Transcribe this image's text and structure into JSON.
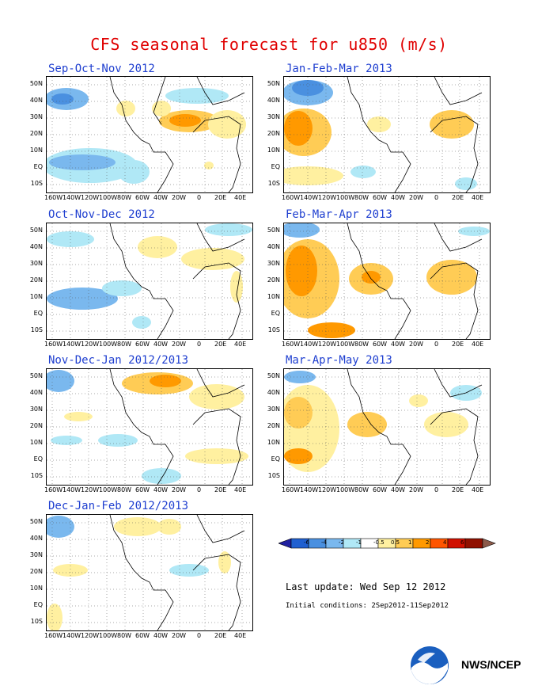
{
  "title": "CFS seasonal forecast for u850 (m/s)",
  "panels": [
    {
      "id": "son",
      "title": "Sep-Oct-Nov 2012"
    },
    {
      "id": "jfm",
      "title": "Jan-Feb-Mar 2013"
    },
    {
      "id": "ond",
      "title": "Oct-Nov-Dec 2012"
    },
    {
      "id": "fma",
      "title": "Feb-Mar-Apr 2013"
    },
    {
      "id": "ndj",
      "title": "Nov-Dec-Jan 2012/2013"
    },
    {
      "id": "mam",
      "title": "Mar-Apr-May 2013"
    },
    {
      "id": "djf",
      "title": "Dec-Jan-Feb 2012/2013"
    }
  ],
  "axes": {
    "lat_labels": [
      "50N",
      "40N",
      "30N",
      "20N",
      "10N",
      "EQ",
      "10S"
    ],
    "lon_labels": [
      "160W",
      "140W",
      "120W",
      "100W",
      "80W",
      "60W",
      "40W",
      "20W",
      "0",
      "20E",
      "40E"
    ]
  },
  "colorbar": {
    "colors": [
      "#2020a0",
      "#2060d0",
      "#4a90e0",
      "#7ab8ee",
      "#b0e8f6",
      "#ffffff",
      "#fff0a0",
      "#ffcc55",
      "#ff9900",
      "#ff5500",
      "#d01000",
      "#901000",
      "#8b5a4a"
    ],
    "labels": [
      "-6",
      "-4",
      "-2",
      "-1",
      "-0.5",
      "0.5",
      "1",
      "2",
      "4",
      "6"
    ]
  },
  "last_update": "Last update: Wed Sep 12 2012",
  "initial_conditions": "Initial conditions: 2Sep2012-11Sep2012",
  "credit": "NWS/NCEP",
  "logo": "noaa-logo"
}
